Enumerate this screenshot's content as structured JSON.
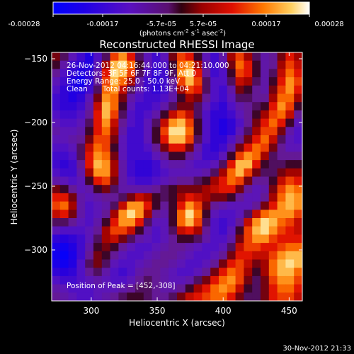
{
  "chart_data": {
    "type": "heatmap",
    "title": "Reconstructed RHESSI Image",
    "xlabel": "Heliocentric X (arcsec)",
    "ylabel": "Heliocentric Y (arcsec)",
    "xlim": [
      270,
      460
    ],
    "ylim": [
      -340,
      -145
    ],
    "xticks": [
      300,
      350,
      400,
      450
    ],
    "yticks": [
      -150,
      -200,
      -250,
      -300
    ],
    "colorbar": {
      "ticks": [
        "-0.00028",
        "-0.00017",
        "-5.7e-05",
        "5.7e-05",
        "0.00017",
        "0.00028"
      ],
      "label": "(photons cm",
      "label_exp1": "-2",
      "label_mid": " s",
      "label_exp2": "-1",
      "label_mid2": " asec",
      "label_exp3": "-2",
      "label_end": ")",
      "range": [
        -0.00028,
        0.00028
      ]
    },
    "annotations": {
      "time_range": "26-Nov-2012 04:16:44.000 to 04:21:10.000",
      "detectors": "Detectors: 3F 5F 6F 7F 8F 9F, Att 0",
      "energy": "Energy Range: 25.0 - 50.0 keV",
      "method": "Clean",
      "counts": "Total counts: 1.13E+04",
      "peak": "Position of Peak = [452,-308]"
    },
    "peak_position": [
      452,
      -308
    ],
    "grid": [
      [
        0.55,
        0.45,
        0.3,
        0.2,
        0.1,
        0.25,
        0.45,
        0.75,
        0.85,
        0.7,
        0.45,
        0.3,
        0.2,
        0.3,
        0.55,
        0.75,
        0.7,
        0.5,
        0.3,
        0.2,
        0.35,
        0.6,
        0.75,
        0.6,
        0.45,
        0.35,
        0.4,
        0.55,
        0.7,
        0.6
      ],
      [
        0.5,
        0.35,
        0.2,
        0.15,
        0.1,
        0.3,
        0.6,
        0.9,
        0.95,
        0.8,
        0.5,
        0.3,
        0.2,
        0.25,
        0.5,
        0.8,
        0.85,
        0.6,
        0.35,
        0.2,
        0.3,
        0.55,
        0.8,
        0.7,
        0.5,
        0.35,
        0.4,
        0.6,
        0.75,
        0.65
      ],
      [
        0.4,
        0.25,
        0.15,
        0.1,
        0.15,
        0.35,
        0.7,
        0.95,
        0.9,
        0.75,
        0.45,
        0.25,
        0.15,
        0.2,
        0.45,
        0.85,
        0.95,
        0.7,
        0.4,
        0.2,
        0.25,
        0.5,
        0.75,
        0.7,
        0.5,
        0.35,
        0.45,
        0.65,
        0.8,
        0.7
      ],
      [
        0.3,
        0.2,
        0.1,
        0.05,
        0.15,
        0.4,
        0.75,
        0.9,
        0.8,
        0.6,
        0.35,
        0.2,
        0.15,
        0.2,
        0.4,
        0.75,
        0.9,
        0.75,
        0.45,
        0.25,
        0.25,
        0.45,
        0.65,
        0.6,
        0.45,
        0.35,
        0.5,
        0.7,
        0.85,
        0.75
      ],
      [
        0.25,
        0.15,
        0.1,
        0.1,
        0.2,
        0.45,
        0.8,
        0.85,
        0.65,
        0.45,
        0.3,
        0.2,
        0.15,
        0.2,
        0.35,
        0.6,
        0.75,
        0.7,
        0.45,
        0.25,
        0.2,
        0.35,
        0.55,
        0.5,
        0.4,
        0.35,
        0.55,
        0.75,
        0.85,
        0.7
      ],
      [
        0.2,
        0.15,
        0.1,
        0.15,
        0.3,
        0.55,
        0.85,
        0.8,
        0.55,
        0.35,
        0.25,
        0.2,
        0.2,
        0.25,
        0.35,
        0.5,
        0.6,
        0.55,
        0.4,
        0.25,
        0.2,
        0.3,
        0.45,
        0.45,
        0.4,
        0.4,
        0.6,
        0.8,
        0.8,
        0.6
      ],
      [
        0.2,
        0.15,
        0.15,
        0.2,
        0.35,
        0.65,
        0.9,
        0.8,
        0.5,
        0.3,
        0.2,
        0.2,
        0.25,
        0.35,
        0.45,
        0.55,
        0.55,
        0.45,
        0.3,
        0.2,
        0.15,
        0.25,
        0.35,
        0.4,
        0.45,
        0.5,
        0.7,
        0.85,
        0.75,
        0.5
      ],
      [
        0.25,
        0.2,
        0.2,
        0.25,
        0.4,
        0.7,
        0.9,
        0.75,
        0.45,
        0.25,
        0.2,
        0.25,
        0.35,
        0.5,
        0.65,
        0.75,
        0.65,
        0.45,
        0.25,
        0.15,
        0.15,
        0.2,
        0.3,
        0.4,
        0.5,
        0.6,
        0.75,
        0.8,
        0.65,
        0.4
      ],
      [
        0.3,
        0.25,
        0.25,
        0.3,
        0.45,
        0.7,
        0.85,
        0.65,
        0.4,
        0.25,
        0.2,
        0.3,
        0.45,
        0.65,
        0.85,
        0.9,
        0.75,
        0.5,
        0.25,
        0.15,
        0.1,
        0.15,
        0.25,
        0.4,
        0.55,
        0.7,
        0.8,
        0.7,
        0.5,
        0.3
      ],
      [
        0.35,
        0.3,
        0.3,
        0.35,
        0.5,
        0.7,
        0.8,
        0.6,
        0.35,
        0.2,
        0.2,
        0.3,
        0.5,
        0.75,
        0.95,
        0.95,
        0.8,
        0.5,
        0.25,
        0.15,
        0.1,
        0.15,
        0.3,
        0.45,
        0.6,
        0.75,
        0.75,
        0.55,
        0.35,
        0.25
      ],
      [
        0.3,
        0.3,
        0.35,
        0.4,
        0.55,
        0.75,
        0.75,
        0.55,
        0.3,
        0.2,
        0.2,
        0.3,
        0.5,
        0.7,
        0.9,
        0.9,
        0.75,
        0.45,
        0.25,
        0.15,
        0.15,
        0.25,
        0.4,
        0.55,
        0.7,
        0.8,
        0.65,
        0.45,
        0.3,
        0.25
      ],
      [
        0.25,
        0.25,
        0.3,
        0.45,
        0.65,
        0.8,
        0.75,
        0.5,
        0.3,
        0.2,
        0.2,
        0.25,
        0.4,
        0.55,
        0.7,
        0.7,
        0.55,
        0.35,
        0.2,
        0.15,
        0.2,
        0.35,
        0.55,
        0.7,
        0.8,
        0.75,
        0.55,
        0.4,
        0.3,
        0.3
      ],
      [
        0.2,
        0.2,
        0.25,
        0.45,
        0.7,
        0.85,
        0.8,
        0.55,
        0.3,
        0.2,
        0.2,
        0.2,
        0.3,
        0.4,
        0.5,
        0.5,
        0.4,
        0.3,
        0.2,
        0.2,
        0.3,
        0.5,
        0.75,
        0.85,
        0.8,
        0.6,
        0.45,
        0.4,
        0.4,
        0.4
      ],
      [
        0.2,
        0.15,
        0.2,
        0.4,
        0.7,
        0.9,
        0.85,
        0.6,
        0.35,
        0.2,
        0.15,
        0.15,
        0.2,
        0.3,
        0.35,
        0.35,
        0.3,
        0.25,
        0.25,
        0.3,
        0.45,
        0.7,
        0.9,
        0.9,
        0.7,
        0.5,
        0.45,
        0.45,
        0.5,
        0.5
      ],
      [
        0.25,
        0.2,
        0.2,
        0.35,
        0.6,
        0.85,
        0.85,
        0.6,
        0.35,
        0.2,
        0.15,
        0.15,
        0.2,
        0.25,
        0.3,
        0.3,
        0.3,
        0.3,
        0.35,
        0.45,
        0.6,
        0.8,
        0.9,
        0.75,
        0.55,
        0.45,
        0.45,
        0.55,
        0.6,
        0.6
      ],
      [
        0.35,
        0.3,
        0.25,
        0.3,
        0.5,
        0.7,
        0.75,
        0.55,
        0.35,
        0.25,
        0.2,
        0.2,
        0.25,
        0.3,
        0.35,
        0.4,
        0.4,
        0.45,
        0.5,
        0.6,
        0.7,
        0.8,
        0.75,
        0.55,
        0.4,
        0.4,
        0.5,
        0.65,
        0.75,
        0.7
      ],
      [
        0.55,
        0.5,
        0.4,
        0.3,
        0.35,
        0.5,
        0.55,
        0.45,
        0.35,
        0.35,
        0.35,
        0.35,
        0.4,
        0.45,
        0.5,
        0.55,
        0.55,
        0.55,
        0.6,
        0.65,
        0.7,
        0.7,
        0.55,
        0.4,
        0.3,
        0.35,
        0.55,
        0.75,
        0.85,
        0.8
      ],
      [
        0.7,
        0.7,
        0.55,
        0.35,
        0.3,
        0.35,
        0.4,
        0.4,
        0.45,
        0.55,
        0.65,
        0.6,
        0.5,
        0.45,
        0.5,
        0.6,
        0.7,
        0.65,
        0.6,
        0.55,
        0.55,
        0.5,
        0.4,
        0.3,
        0.3,
        0.4,
        0.6,
        0.8,
        0.9,
        0.85
      ],
      [
        0.75,
        0.8,
        0.6,
        0.35,
        0.25,
        0.3,
        0.35,
        0.45,
        0.65,
        0.85,
        0.85,
        0.7,
        0.5,
        0.4,
        0.5,
        0.7,
        0.85,
        0.75,
        0.55,
        0.4,
        0.35,
        0.3,
        0.3,
        0.3,
        0.4,
        0.55,
        0.7,
        0.85,
        0.9,
        0.85
      ],
      [
        0.65,
        0.7,
        0.55,
        0.35,
        0.25,
        0.3,
        0.4,
        0.6,
        0.85,
        0.95,
        0.85,
        0.6,
        0.4,
        0.35,
        0.5,
        0.8,
        0.95,
        0.8,
        0.5,
        0.3,
        0.25,
        0.25,
        0.3,
        0.45,
        0.65,
        0.8,
        0.85,
        0.85,
        0.85,
        0.75
      ],
      [
        0.45,
        0.45,
        0.4,
        0.3,
        0.25,
        0.35,
        0.5,
        0.7,
        0.85,
        0.85,
        0.7,
        0.45,
        0.3,
        0.3,
        0.5,
        0.8,
        0.9,
        0.75,
        0.45,
        0.25,
        0.2,
        0.25,
        0.4,
        0.65,
        0.85,
        0.95,
        0.9,
        0.8,
        0.75,
        0.65
      ],
      [
        0.3,
        0.25,
        0.25,
        0.25,
        0.3,
        0.4,
        0.6,
        0.75,
        0.75,
        0.65,
        0.5,
        0.35,
        0.25,
        0.3,
        0.45,
        0.65,
        0.7,
        0.6,
        0.4,
        0.25,
        0.2,
        0.3,
        0.5,
        0.75,
        0.9,
        0.95,
        0.85,
        0.75,
        0.7,
        0.65
      ],
      [
        0.15,
        0.12,
        0.15,
        0.2,
        0.3,
        0.45,
        0.6,
        0.65,
        0.55,
        0.45,
        0.35,
        0.3,
        0.25,
        0.3,
        0.4,
        0.5,
        0.5,
        0.45,
        0.35,
        0.25,
        0.25,
        0.35,
        0.55,
        0.75,
        0.85,
        0.85,
        0.75,
        0.7,
        0.7,
        0.7
      ],
      [
        0.08,
        0.05,
        0.1,
        0.2,
        0.35,
        0.5,
        0.55,
        0.5,
        0.4,
        0.3,
        0.25,
        0.25,
        0.3,
        0.35,
        0.4,
        0.4,
        0.35,
        0.3,
        0.25,
        0.25,
        0.3,
        0.45,
        0.65,
        0.75,
        0.75,
        0.7,
        0.7,
        0.75,
        0.8,
        0.8
      ],
      [
        0.05,
        0.02,
        0.08,
        0.2,
        0.4,
        0.55,
        0.5,
        0.4,
        0.3,
        0.25,
        0.25,
        0.3,
        0.35,
        0.4,
        0.4,
        0.35,
        0.3,
        0.25,
        0.25,
        0.3,
        0.4,
        0.55,
        0.7,
        0.7,
        0.65,
        0.65,
        0.75,
        0.85,
        0.9,
        0.9
      ],
      [
        0.08,
        0.05,
        0.1,
        0.25,
        0.45,
        0.55,
        0.45,
        0.3,
        0.25,
        0.25,
        0.3,
        0.35,
        0.4,
        0.4,
        0.35,
        0.3,
        0.25,
        0.25,
        0.3,
        0.4,
        0.55,
        0.7,
        0.75,
        0.65,
        0.55,
        0.6,
        0.8,
        0.9,
        0.95,
        0.9
      ],
      [
        0.15,
        0.12,
        0.15,
        0.25,
        0.4,
        0.45,
        0.35,
        0.25,
        0.2,
        0.25,
        0.35,
        0.4,
        0.4,
        0.35,
        0.3,
        0.25,
        0.25,
        0.3,
        0.4,
        0.55,
        0.7,
        0.8,
        0.75,
        0.6,
        0.5,
        0.6,
        0.8,
        0.9,
        0.9,
        0.8
      ],
      [
        0.25,
        0.2,
        0.2,
        0.25,
        0.3,
        0.35,
        0.3,
        0.25,
        0.25,
        0.3,
        0.4,
        0.45,
        0.4,
        0.35,
        0.3,
        0.3,
        0.35,
        0.45,
        0.55,
        0.7,
        0.8,
        0.85,
        0.75,
        0.55,
        0.45,
        0.55,
        0.75,
        0.85,
        0.85,
        0.75
      ],
      [
        0.35,
        0.3,
        0.25,
        0.25,
        0.25,
        0.3,
        0.3,
        0.3,
        0.35,
        0.4,
        0.45,
        0.45,
        0.4,
        0.35,
        0.35,
        0.4,
        0.5,
        0.6,
        0.7,
        0.8,
        0.85,
        0.8,
        0.65,
        0.5,
        0.45,
        0.55,
        0.7,
        0.8,
        0.8,
        0.7
      ],
      [
        0.4,
        0.35,
        0.3,
        0.25,
        0.25,
        0.3,
        0.35,
        0.4,
        0.45,
        0.5,
        0.5,
        0.45,
        0.4,
        0.4,
        0.45,
        0.55,
        0.65,
        0.7,
        0.75,
        0.8,
        0.8,
        0.7,
        0.55,
        0.45,
        0.45,
        0.55,
        0.7,
        0.75,
        0.75,
        0.65
      ]
    ],
    "footer_date": "30-Nov-2012 21:33"
  }
}
